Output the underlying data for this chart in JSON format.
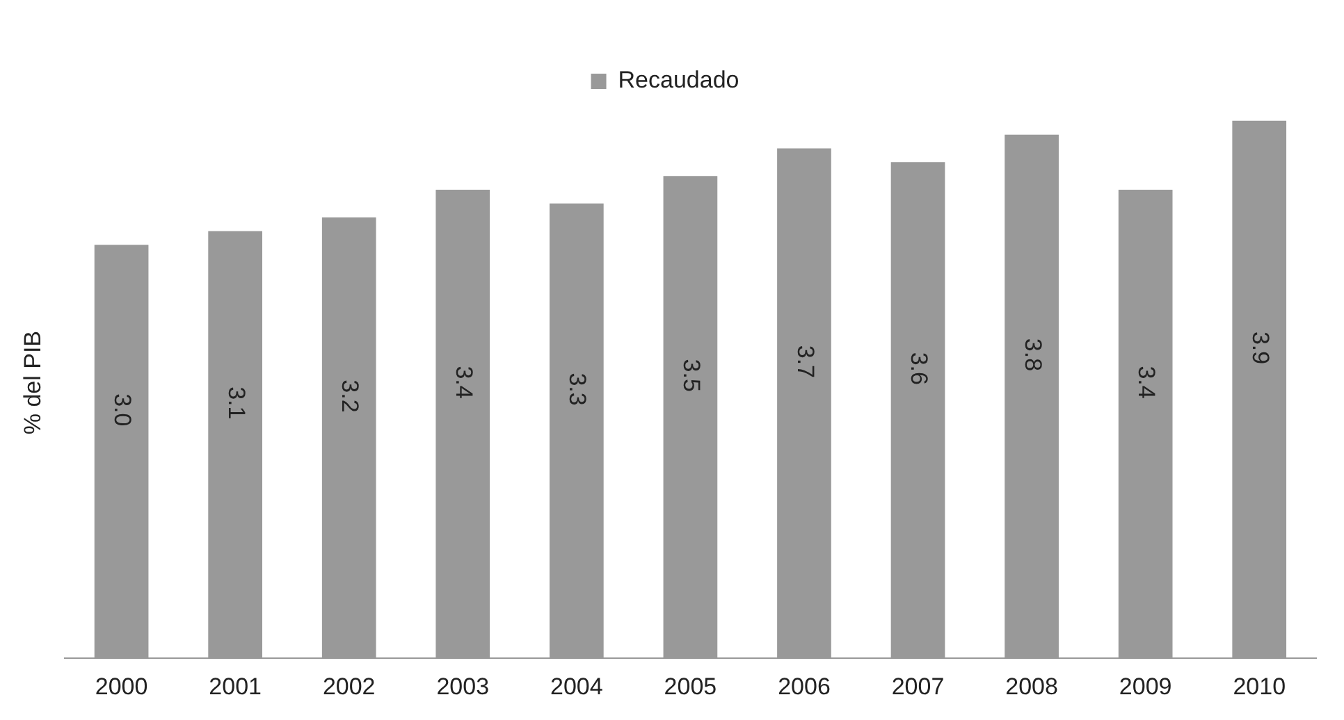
{
  "chart_data": {
    "type": "bar",
    "ylabel": "% del PIB",
    "categories": [
      "2000",
      "2001",
      "2002",
      "2003",
      "2004",
      "2005",
      "2006",
      "2007",
      "2008",
      "2009",
      "2010"
    ],
    "series": [
      {
        "name": "Recaudado",
        "color": "#999999",
        "values": [
          3.0,
          3.1,
          3.2,
          3.4,
          3.3,
          3.5,
          3.7,
          3.6,
          3.8,
          3.4,
          3.9
        ],
        "value_labels": [
          "3.0",
          "3.1",
          "3.2",
          "3.4",
          "3.3",
          "3.5",
          "3.7",
          "3.6",
          "3.8",
          "3.4",
          "3.9"
        ]
      }
    ],
    "legend": "top",
    "grid": false,
    "tick_labels": "x"
  }
}
